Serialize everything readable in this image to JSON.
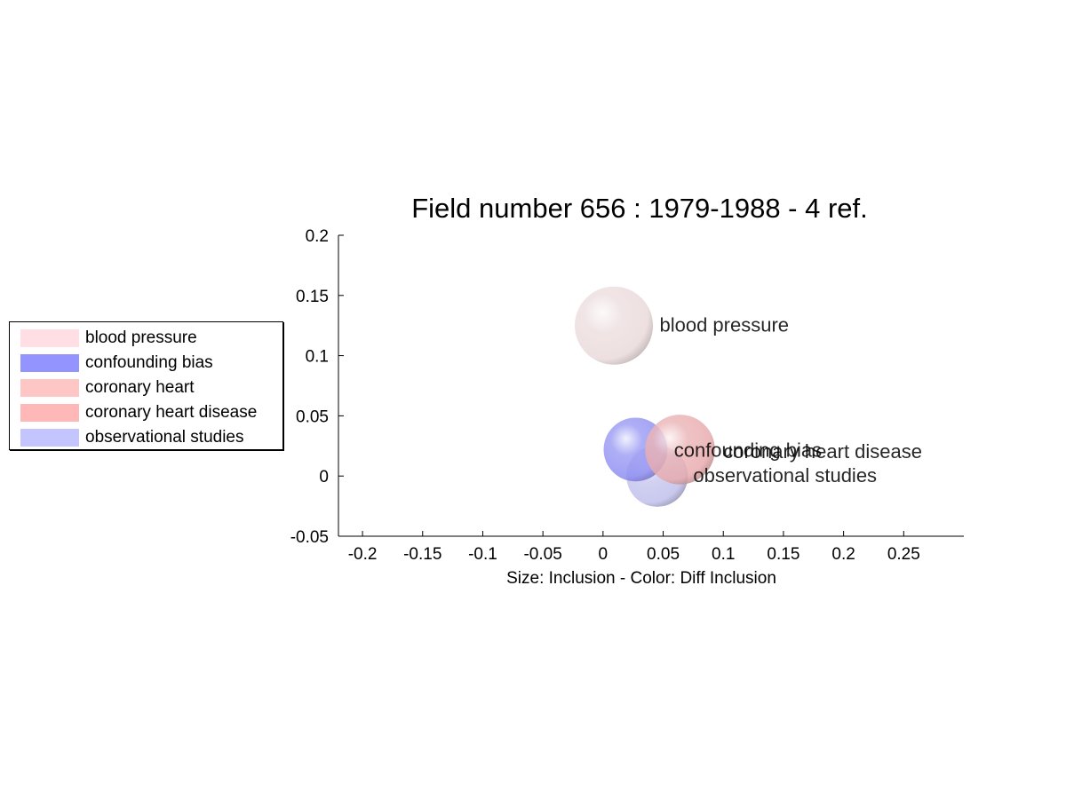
{
  "chart_data": {
    "type": "scatter",
    "title": "Field number 656 : 1979-1988  - 4 ref.",
    "xlabel": "Size: Inclusion - Color: Diff Inclusion",
    "ylabel": "",
    "xlim": [
      -0.22,
      0.3
    ],
    "ylim": [
      -0.05,
      0.2
    ],
    "x_ticks": [
      -0.2,
      -0.15,
      -0.1,
      -0.05,
      0,
      0.05,
      0.1,
      0.15,
      0.2,
      0.25
    ],
    "x_tick_labels": [
      "-0.2",
      "-0.15",
      "-0.1",
      "-0.05",
      "0",
      "0.05",
      "0.1",
      "0.15",
      "0.2",
      "0.25"
    ],
    "y_ticks": [
      -0.05,
      0,
      0.05,
      0.1,
      0.15,
      0.2
    ],
    "y_tick_labels": [
      "-0.05",
      "0",
      "0.05",
      "0.1",
      "0.15",
      "0.2"
    ],
    "grid": false,
    "legend_position": "outside-left",
    "points": [
      {
        "name": "blood pressure",
        "x": 0.009,
        "y": 0.125,
        "size": 0.065,
        "color": "#ead9da",
        "legend_color": "#ffdfe4"
      },
      {
        "name": "confounding bias",
        "x": 0.027,
        "y": 0.022,
        "size": 0.053,
        "color": "#8c8cf2",
        "legend_color": "#9494ff"
      },
      {
        "name": "coronary heart",
        "x": 0.045,
        "y": 0.0,
        "size": 0.051,
        "color": "#c8c8ee",
        "legend_color": "#ffc6c6"
      },
      {
        "name": "coronary heart disease",
        "x": 0.064,
        "y": 0.022,
        "size": 0.058,
        "color": "#e8a9ac",
        "legend_color": "#ffb8b8"
      },
      {
        "name": "observational studies",
        "x": 0.045,
        "y": 0.0,
        "size": 0.051,
        "color": "#c6c6f0",
        "legend_color": "#c4c4ff"
      }
    ],
    "labels": [
      {
        "text": "blood pressure",
        "x": 0.047,
        "y": 0.125
      },
      {
        "text": "confounding bias",
        "x": 0.059,
        "y": 0.021
      },
      {
        "text": "coronary heart disease",
        "x": 0.1,
        "y": 0.02
      },
      {
        "text": "observational studies",
        "x": 0.075,
        "y": 0.0
      }
    ]
  }
}
